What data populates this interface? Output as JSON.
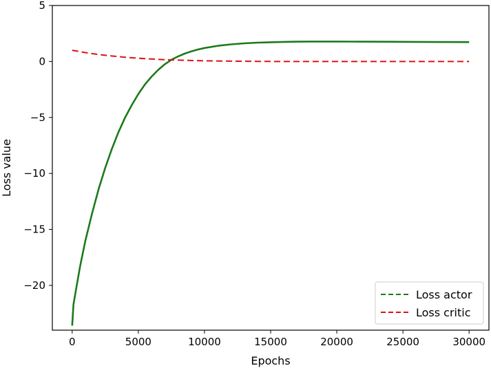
{
  "chart_data": {
    "type": "line",
    "xlabel": "Epochs",
    "ylabel": "Loss value",
    "xlim": [
      -1500,
      31500
    ],
    "ylim": [
      -24,
      5
    ],
    "xticks": [
      0,
      5000,
      10000,
      15000,
      20000,
      25000,
      30000
    ],
    "xtick_labels": [
      "0",
      "5000",
      "10000",
      "15000",
      "20000",
      "25000",
      "30000"
    ],
    "yticks": [
      5,
      0,
      -5,
      -10,
      -15,
      -20
    ],
    "ytick_labels": [
      "5",
      "0",
      "−5",
      "−10",
      "−15",
      "−20"
    ],
    "grid": false,
    "legend_position": "lower-right",
    "series": [
      {
        "name": "Loss actor",
        "color": "#1a7a1a",
        "linestyle": "dashed",
        "x": [
          0,
          100,
          300,
          600,
          1000,
          1500,
          2000,
          2500,
          3000,
          3500,
          4000,
          4500,
          5000,
          5500,
          6000,
          6500,
          7000,
          7500,
          8000,
          8500,
          9000,
          9500,
          10000,
          11000,
          12000,
          13000,
          14000,
          15000,
          16000,
          17000,
          18000,
          19000,
          20000,
          22000,
          24000,
          26000,
          28000,
          30000
        ],
        "y": [
          -23.6,
          -21.7,
          -20.3,
          -18.3,
          -16.0,
          -13.6,
          -11.4,
          -9.5,
          -7.8,
          -6.3,
          -5.0,
          -3.9,
          -2.9,
          -2.05,
          -1.35,
          -0.75,
          -0.25,
          0.15,
          0.45,
          0.7,
          0.9,
          1.07,
          1.2,
          1.4,
          1.53,
          1.62,
          1.68,
          1.72,
          1.75,
          1.77,
          1.78,
          1.78,
          1.78,
          1.77,
          1.76,
          1.75,
          1.74,
          1.73
        ]
      },
      {
        "name": "Loss critic",
        "color": "#e01010",
        "linestyle": "dashed",
        "x": [
          0,
          1000,
          2000,
          3000,
          4000,
          5000,
          6000,
          7000,
          8000,
          9000,
          10000,
          12000,
          14000,
          16000,
          18000,
          20000,
          22000,
          24000,
          26000,
          28000,
          30000
        ],
        "y": [
          1.0,
          0.79,
          0.62,
          0.49,
          0.38,
          0.29,
          0.22,
          0.16,
          0.12,
          0.09,
          0.06,
          0.03,
          0.01,
          0.0,
          0.0,
          0.0,
          0.0,
          0.0,
          0.0,
          0.0,
          0.0
        ]
      }
    ]
  }
}
